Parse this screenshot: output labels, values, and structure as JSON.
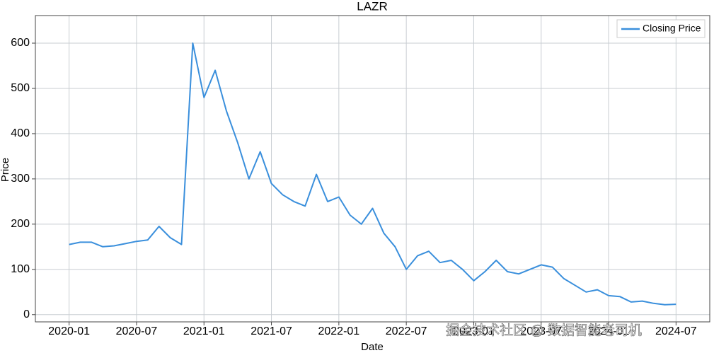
{
  "chart_data": {
    "type": "line",
    "title": "LAZR",
    "x_label": "Date",
    "y_label": "Price",
    "x": [
      "2020-01",
      "2020-02",
      "2020-03",
      "2020-04",
      "2020-05",
      "2020-06",
      "2020-07",
      "2020-08",
      "2020-09",
      "2020-10",
      "2020-11",
      "2020-12",
      "2021-01",
      "2021-02",
      "2021-03",
      "2021-04",
      "2021-05",
      "2021-06",
      "2021-07",
      "2021-08",
      "2021-09",
      "2021-10",
      "2021-11",
      "2021-12",
      "2022-01",
      "2022-02",
      "2022-03",
      "2022-04",
      "2022-05",
      "2022-06",
      "2022-07",
      "2022-08",
      "2022-09",
      "2022-10",
      "2022-11",
      "2022-12",
      "2023-01",
      "2023-02",
      "2023-03",
      "2023-04",
      "2023-05",
      "2023-06",
      "2023-07",
      "2023-08",
      "2023-09",
      "2023-10",
      "2023-11",
      "2023-12",
      "2024-01",
      "2024-02",
      "2024-03",
      "2024-04",
      "2024-05",
      "2024-06",
      "2024-07"
    ],
    "series": [
      {
        "name": "Closing Price",
        "color": "#3a8fdc",
        "values": [
          155,
          160,
          160,
          150,
          152,
          157,
          162,
          165,
          195,
          170,
          155,
          600,
          480,
          540,
          450,
          380,
          300,
          360,
          290,
          265,
          250,
          240,
          310,
          250,
          260,
          220,
          200,
          235,
          180,
          150,
          100,
          130,
          140,
          115,
          120,
          100,
          75,
          95,
          120,
          95,
          90,
          100,
          110,
          105,
          80,
          65,
          50,
          55,
          42,
          40,
          28,
          30,
          25,
          22,
          23
        ]
      }
    ],
    "xlim": [
      "2019-10",
      "2024-10"
    ],
    "xticks": [
      "2020-01",
      "2020-07",
      "2021-01",
      "2021-07",
      "2022-01",
      "2022-07",
      "2023-01",
      "2023-07",
      "2024-01",
      "2024-07"
    ],
    "ylim": [
      -16,
      661
    ],
    "yticks": [
      0,
      100,
      200,
      300,
      400,
      500,
      600
    ],
    "grid": true,
    "legend": "upper right",
    "watermark": "掘金技术社区 @ 数据智能老司机"
  }
}
